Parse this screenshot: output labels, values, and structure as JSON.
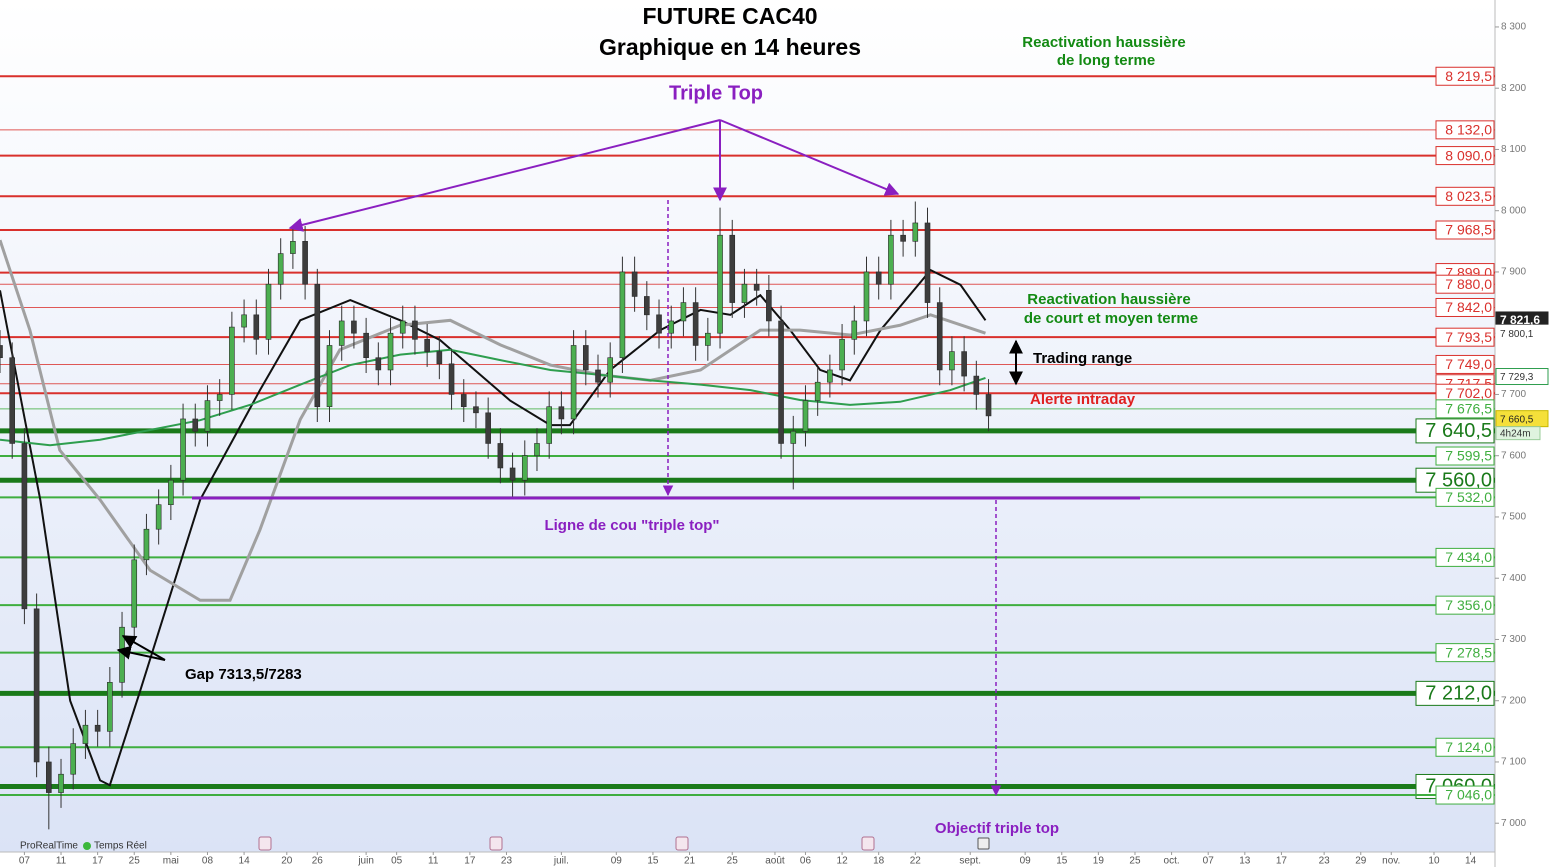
{
  "chart_data": {
    "type": "candlestick",
    "title": "FUTURE CAC40",
    "subtitle": "Graphique en 14 heures",
    "up_color": "#4caf50",
    "down_color": "#3d3d3d",
    "xlim": [
      0,
      245
    ],
    "ylim": [
      6953,
      8344
    ],
    "grid": false,
    "yticks": [
      {
        "value": 7000,
        "label": "7 000"
      },
      {
        "value": 7100,
        "label": "7 100"
      },
      {
        "value": 7200,
        "label": "7 200"
      },
      {
        "value": 7300,
        "label": "7 300"
      },
      {
        "value": 7400,
        "label": "7 400"
      },
      {
        "value": 7500,
        "label": "7 500"
      },
      {
        "value": 7600,
        "label": "7 600"
      },
      {
        "value": 7700,
        "label": "7 700"
      },
      {
        "value": 7800,
        "label": "7 800"
      },
      {
        "value": 7900,
        "label": "7 900"
      },
      {
        "value": 8000,
        "label": "8 000"
      },
      {
        "value": 8100,
        "label": "8 100"
      },
      {
        "value": 8200,
        "label": "8 200"
      },
      {
        "value": 8300,
        "label": "8 300"
      }
    ],
    "xticks": [
      {
        "value": 4,
        "label": "07"
      },
      {
        "value": 10,
        "label": "11"
      },
      {
        "value": 16,
        "label": "17"
      },
      {
        "value": 22,
        "label": "25"
      },
      {
        "value": 28,
        "label": "mai"
      },
      {
        "value": 34,
        "label": "08"
      },
      {
        "value": 40,
        "label": "14"
      },
      {
        "value": 47,
        "label": "20"
      },
      {
        "value": 52,
        "label": "26"
      },
      {
        "value": 60,
        "label": "juin"
      },
      {
        "value": 65,
        "label": "05"
      },
      {
        "value": 71,
        "label": "11"
      },
      {
        "value": 77,
        "label": "17"
      },
      {
        "value": 83,
        "label": "23"
      },
      {
        "value": 92,
        "label": "juil."
      },
      {
        "value": 101,
        "label": "09"
      },
      {
        "value": 107,
        "label": "15"
      },
      {
        "value": 113,
        "label": "21"
      },
      {
        "value": 120,
        "label": "25"
      },
      {
        "value": 127,
        "label": "août"
      },
      {
        "value": 132,
        "label": "06"
      },
      {
        "value": 138,
        "label": "12"
      },
      {
        "value": 144,
        "label": "18"
      },
      {
        "value": 150,
        "label": "22"
      },
      {
        "value": 159,
        "label": "sept."
      },
      {
        "value": 168,
        "label": "09"
      },
      {
        "value": 174,
        "label": "15"
      },
      {
        "value": 180,
        "label": "19"
      },
      {
        "value": 186,
        "label": "25"
      },
      {
        "value": 192,
        "label": "oct."
      },
      {
        "value": 198,
        "label": "07"
      },
      {
        "value": 204,
        "label": "13"
      },
      {
        "value": 210,
        "label": "17"
      },
      {
        "value": 217,
        "label": "23"
      },
      {
        "value": 223,
        "label": "29"
      },
      {
        "value": 228,
        "label": "nov."
      },
      {
        "value": 235,
        "label": "10"
      },
      {
        "value": 241,
        "label": "14"
      }
    ],
    "x": [
      0,
      2,
      4,
      6,
      8,
      10,
      12,
      14,
      16,
      18,
      20,
      22,
      24,
      26,
      28,
      30,
      32,
      34,
      36,
      38,
      40,
      42,
      44,
      46,
      48,
      50,
      52,
      54,
      56,
      58,
      60,
      62,
      64,
      66,
      68,
      70,
      72,
      74,
      76,
      78,
      80,
      82,
      84,
      86,
      88,
      90,
      92,
      94,
      96,
      98,
      100,
      102,
      104,
      106,
      108,
      110,
      112,
      114,
      116,
      118,
      120,
      122,
      124,
      126,
      128,
      130,
      132,
      134,
      136,
      138,
      140,
      142,
      144,
      146,
      148,
      150,
      152,
      154,
      156,
      158,
      160,
      162
    ],
    "open": [
      7780,
      7760,
      7620,
      7350,
      7100,
      7050,
      7080,
      7130,
      7160,
      7150,
      7230,
      7320,
      7430,
      7480,
      7520,
      7560,
      7660,
      7640,
      7690,
      7700,
      7810,
      7830,
      7790,
      7880,
      7930,
      7950,
      7880,
      7680,
      7780,
      7820,
      7800,
      7760,
      7740,
      7800,
      7820,
      7790,
      7770,
      7750,
      7700,
      7680,
      7670,
      7620,
      7580,
      7560,
      7600,
      7620,
      7680,
      7660,
      7780,
      7740,
      7720,
      7760,
      7900,
      7860,
      7830,
      7800,
      7820,
      7850,
      7780,
      7800,
      7960,
      7850,
      7880,
      7870,
      7820,
      7620,
      7640,
      7690,
      7720,
      7740,
      7790,
      7820,
      7900,
      7880,
      7960,
      7950,
      7980,
      7850,
      7740,
      7770,
      7730,
      7700
    ],
    "high": [
      7805,
      7785,
      7645,
      7375,
      7125,
      7105,
      7155,
      7185,
      7185,
      7255,
      7345,
      7455,
      7505,
      7545,
      7585,
      7685,
      7685,
      7715,
      7725,
      7835,
      7855,
      7855,
      7905,
      7955,
      7975,
      7975,
      7905,
      7805,
      7845,
      7845,
      7825,
      7785,
      7825,
      7845,
      7845,
      7815,
      7795,
      7775,
      7725,
      7705,
      7695,
      7645,
      7605,
      7625,
      7645,
      7705,
      7705,
      7805,
      7805,
      7765,
      7785,
      7925,
      7925,
      7885,
      7855,
      7845,
      7875,
      7875,
      7825,
      8005,
      7985,
      7905,
      7905,
      7895,
      7845,
      7665,
      7715,
      7745,
      7765,
      7815,
      7845,
      7925,
      7925,
      7985,
      7985,
      8015,
      8005,
      7875,
      7795,
      7795,
      7755,
      7725
    ],
    "low": [
      7735,
      7595,
      7325,
      7075,
      6990,
      7025,
      7055,
      7105,
      7125,
      7125,
      7205,
      7295,
      7405,
      7455,
      7495,
      7535,
      7615,
      7615,
      7665,
      7675,
      7785,
      7765,
      7765,
      7855,
      7905,
      7855,
      7655,
      7655,
      7755,
      7775,
      7735,
      7715,
      7715,
      7775,
      7765,
      7745,
      7725,
      7675,
      7655,
      7645,
      7595,
      7555,
      7530,
      7535,
      7575,
      7595,
      7635,
      7635,
      7715,
      7695,
      7695,
      7735,
      7835,
      7805,
      7775,
      7775,
      7795,
      7755,
      7755,
      7775,
      7825,
      7825,
      7845,
      7795,
      7595,
      7545,
      7615,
      7665,
      7695,
      7715,
      7765,
      7795,
      7855,
      7855,
      7925,
      7925,
      7825,
      7715,
      7715,
      7705,
      7675,
      7640
    ],
    "close": [
      7760,
      7620,
      7350,
      7100,
      7050,
      7080,
      7130,
      7160,
      7150,
      7230,
      7320,
      7430,
      7480,
      7520,
      7560,
      7660,
      7640,
      7690,
      7700,
      7810,
      7830,
      7790,
      7880,
      7930,
      7950,
      7880,
      7680,
      7780,
      7820,
      7800,
      7760,
      7740,
      7800,
      7820,
      7790,
      7770,
      7750,
      7700,
      7680,
      7670,
      7620,
      7580,
      7560,
      7600,
      7620,
      7680,
      7660,
      7780,
      7740,
      7720,
      7760,
      7900,
      7860,
      7830,
      7800,
      7820,
      7850,
      7780,
      7800,
      7960,
      7850,
      7880,
      7870,
      7820,
      7620,
      7640,
      7690,
      7720,
      7740,
      7790,
      7820,
      7900,
      7880,
      7960,
      7950,
      7980,
      7850,
      7740,
      7770,
      7730,
      7700,
      7665
    ],
    "moving_averages": [
      {
        "color": "#111111",
        "x": [
          0,
          6.6,
          11.5,
          16.4,
          18,
          23,
          32.8,
          42.6,
          49.2,
          57.4,
          65.6,
          72.1,
          83.6,
          90.2,
          93.4,
          100,
          108.2,
          114.8,
          119.7,
          124.6,
          129.5,
          134.4,
          139.3,
          144.3,
          152.5,
          157.4,
          161.5
        ],
        "values": [
          7870,
          7528,
          7200,
          7070,
          7062,
          7217,
          7528,
          7707,
          7821,
          7854,
          7821,
          7789,
          7690,
          7650,
          7650,
          7740,
          7805,
          7838,
          7830,
          7862,
          7805,
          7740,
          7723,
          7805,
          7903,
          7879,
          7821
        ]
      },
      {
        "color": "#a0a0a0",
        "x": [
          0,
          4.9,
          9.8,
          16.4,
          24.6,
          32.8,
          37.7,
          42.6,
          49.2,
          55.7,
          65.6,
          73.8,
          82,
          90.2,
          98.4,
          106.6,
          114.8,
          124.6,
          131.1,
          139.3,
          147.5,
          152.5,
          161.5
        ],
        "values": [
          7952,
          7805,
          7609,
          7528,
          7413,
          7364,
          7364,
          7479,
          7659,
          7773,
          7813,
          7821,
          7781,
          7748,
          7732,
          7723,
          7740,
          7805,
          7805,
          7797,
          7813,
          7830,
          7800
        ]
      },
      {
        "color": "#2e9e4e",
        "x": [
          0,
          8.2,
          16.4,
          24.6,
          32.8,
          41,
          49.2,
          57.4,
          65.6,
          73.8,
          82,
          90.2,
          98.4,
          106.6,
          114.8,
          123,
          131.1,
          139.3,
          147.5,
          155.7,
          161.5
        ],
        "values": [
          7626,
          7617,
          7626,
          7642,
          7658,
          7683,
          7716,
          7748,
          7765,
          7773,
          7756,
          7740,
          7732,
          7723,
          7716,
          7707,
          7691,
          7683,
          7688,
          7707,
          7727
        ]
      }
    ],
    "levels": [
      {
        "value": 8219.5,
        "label": "8 219,5",
        "color": "#d9302c",
        "style": "medium"
      },
      {
        "value": 8132.0,
        "label": "8 132,0",
        "color": "#d9302c",
        "style": "thin"
      },
      {
        "value": 8090.0,
        "label": "8 090,0",
        "color": "#d9302c",
        "style": "medium"
      },
      {
        "value": 8023.5,
        "label": "8 023,5",
        "color": "#d9302c",
        "style": "medium"
      },
      {
        "value": 7968.5,
        "label": "7 968,5",
        "color": "#d9302c",
        "style": "medium"
      },
      {
        "value": 7899.0,
        "label": "7 899,0",
        "color": "#d9302c",
        "style": "medium"
      },
      {
        "value": 7880.0,
        "label": "7 880,0",
        "color": "#d9302c",
        "style": "thin"
      },
      {
        "value": 7842.0,
        "label": "7 842,0",
        "color": "#d9302c",
        "style": "thin"
      },
      {
        "value": 7793.5,
        "label": "7 793,5",
        "color": "#d9302c",
        "style": "medium"
      },
      {
        "value": 7749.0,
        "label": "7 749,0",
        "color": "#d9302c",
        "style": "thin"
      },
      {
        "value": 7717.5,
        "label": "7 717,5",
        "color": "#d9302c",
        "style": "thin"
      },
      {
        "value": 7702.0,
        "label": "7 702,0",
        "color": "#d9302c",
        "style": "medium"
      },
      {
        "value": 7676.5,
        "label": "7 676,5",
        "color": "#3fae3f",
        "style": "thin"
      },
      {
        "value": 7640.5,
        "label": "7 640,5",
        "color": "#1a7a1a",
        "style": "thick"
      },
      {
        "value": 7599.5,
        "label": "7 599,5",
        "color": "#3fae3f",
        "style": "medium"
      },
      {
        "value": 7560.0,
        "label": "7 560,0",
        "color": "#1a7a1a",
        "style": "thick"
      },
      {
        "value": 7532.0,
        "label": "7 532,0",
        "color": "#3fae3f",
        "style": "medium"
      },
      {
        "value": 7434.0,
        "label": "7 434,0",
        "color": "#3fae3f",
        "style": "medium"
      },
      {
        "value": 7356.0,
        "label": "7 356,0",
        "color": "#3fae3f",
        "style": "medium"
      },
      {
        "value": 7278.5,
        "label": "7 278,5",
        "color": "#3fae3f",
        "style": "medium"
      },
      {
        "value": 7212.0,
        "label": "7 212,0",
        "color": "#1a7a1a",
        "style": "thick"
      },
      {
        "value": 7124.0,
        "label": "7 124,0",
        "color": "#3fae3f",
        "style": "medium"
      },
      {
        "value": 7060.0,
        "label": "7 060,0",
        "color": "#1a7a1a",
        "style": "thick"
      },
      {
        "value": 7046.0,
        "label": "7 046,0",
        "color": "#3fae3f",
        "style": "medium"
      }
    ],
    "price_tags": [
      {
        "value": 7821.6,
        "label": "7 821,6",
        "style": "dark"
      },
      {
        "value": 7800.1,
        "label": "7 800,1",
        "style": "plain"
      },
      {
        "value": 7729.3,
        "label": "7 729,3",
        "style": "green"
      },
      {
        "value": 7660.5,
        "label": "7 660,5",
        "style": "yellow"
      }
    ],
    "countdown": "4h24m",
    "annotations": {
      "triple_top": "Triple Top",
      "long_term": [
        "Reactivation haussière",
        "de long terme"
      ],
      "short_term": [
        "Reactivation haussière",
        "de court et moyen terme"
      ],
      "trading_range": "Trading range",
      "alert": "Alerte intraday",
      "neckline": "Ligne de cou \"triple top\"",
      "gap": "Gap 7313,5/7283",
      "target": "Objectif triple top",
      "brand": "ProRealTime",
      "realtime": "Temps Réel"
    }
  }
}
